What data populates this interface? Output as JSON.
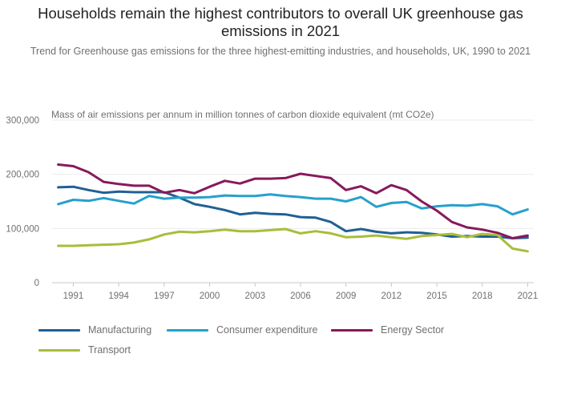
{
  "title_line1": "Households remain the highest contributors to overall UK greenhouse gas",
  "title_line2": "emissions in 2021",
  "subtitle": "Trend for Greenhouse gas emissions for the three highest-emitting industries, and households, UK, 1990 to 2021",
  "chart_data": {
    "type": "line",
    "ylabel": "Mass of air emissions per annum in million tonnes of carbon dioxide equivalent (mt CO2e)",
    "xlabel": "",
    "ylim": [
      0,
      300000
    ],
    "y_ticks": [
      0,
      100000,
      200000,
      300000
    ],
    "y_tick_labels": [
      "0",
      "100,000",
      "200,000",
      "300,000"
    ],
    "x_ticks": [
      1991,
      1994,
      1997,
      2000,
      2003,
      2006,
      2009,
      2012,
      2015,
      2018,
      2021
    ],
    "x_tick_labels": [
      "1991",
      "1994",
      "1997",
      "2000",
      "2003",
      "2006",
      "2009",
      "2012",
      "2015",
      "2018",
      "2021"
    ],
    "grid": "horizontal",
    "legend_position": "bottom",
    "x": [
      1990,
      1991,
      1992,
      1993,
      1994,
      1995,
      1996,
      1997,
      1998,
      1999,
      2000,
      2001,
      2002,
      2003,
      2004,
      2005,
      2006,
      2007,
      2008,
      2009,
      2010,
      2011,
      2012,
      2013,
      2014,
      2015,
      2016,
      2017,
      2018,
      2019,
      2020,
      2021
    ],
    "series": [
      {
        "name": "Manufacturing",
        "color": "#206095",
        "values": [
          176000,
          177000,
          171000,
          166000,
          168000,
          167000,
          167000,
          167000,
          157000,
          145000,
          140000,
          134000,
          126000,
          129000,
          127000,
          126000,
          121000,
          120000,
          112000,
          95000,
          99000,
          94000,
          91000,
          93000,
          92000,
          89000,
          85000,
          86000,
          85000,
          85000,
          82000,
          83000
        ]
      },
      {
        "name": "Consumer expenditure",
        "color": "#27a0cc",
        "values": [
          145000,
          153000,
          151000,
          156000,
          151000,
          146000,
          160000,
          155000,
          157000,
          157000,
          158000,
          161000,
          160000,
          160000,
          163000,
          160000,
          158000,
          155000,
          155000,
          150000,
          158000,
          140000,
          147000,
          149000,
          137000,
          141000,
          143000,
          142000,
          145000,
          141000,
          126000,
          135000
        ]
      },
      {
        "name": "Energy Sector",
        "color": "#871a5b",
        "values": [
          218000,
          215000,
          204000,
          186000,
          182000,
          179000,
          179000,
          166000,
          171000,
          165000,
          177000,
          188000,
          183000,
          192000,
          192000,
          193000,
          201000,
          197000,
          193000,
          171000,
          178000,
          165000,
          180000,
          171000,
          150000,
          133000,
          112000,
          102000,
          98000,
          92000,
          82000,
          87000
        ]
      },
      {
        "name": "Transport",
        "color": "#a8bd3a",
        "values": [
          68000,
          68000,
          69000,
          70000,
          71000,
          74000,
          80000,
          89000,
          94000,
          93000,
          95000,
          98000,
          95000,
          95000,
          97000,
          99000,
          91000,
          95000,
          91000,
          84000,
          85000,
          87000,
          84000,
          81000,
          86000,
          88000,
          90000,
          84000,
          90000,
          88000,
          63000,
          58000
        ]
      }
    ]
  }
}
